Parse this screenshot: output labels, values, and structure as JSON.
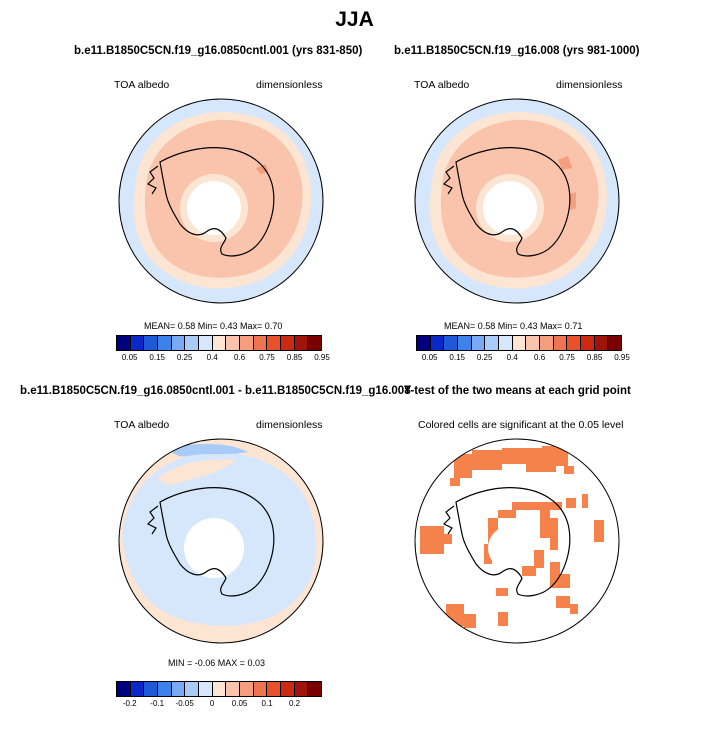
{
  "figure": {
    "title": "JJA"
  },
  "panels": [
    {
      "title": "b.e11.B1850C5CN.f19_g16.0850cntl.001 (yrs 831-850)",
      "var_label": "TOA albedo",
      "units_label": "dimensionless",
      "stats": "MEAN=  0.58  Min=  0.43  Max=  0.70",
      "colorbar": {
        "colors": [
          "#00007f",
          "#0a27c8",
          "#1e5ad8",
          "#3c82ea",
          "#7aaaf5",
          "#a9cbf8",
          "#d6e7fb",
          "#fde5d4",
          "#f9c4ab",
          "#f49e7d",
          "#ef7550",
          "#e8512a",
          "#cc2a10",
          "#a11208",
          "#7a0000"
        ],
        "tick_labels": [
          "0.05",
          "0.15",
          "0.25",
          "0.4",
          "0.6",
          "0.75",
          "0.85",
          "0.95"
        ]
      }
    },
    {
      "title": "b.e11.B1850C5CN.f19_g16.008 (yrs 981-1000)",
      "var_label": "TOA albedo",
      "units_label": "dimensionless",
      "stats": "MEAN=  0.58  Min=  0.43  Max=  0.71",
      "colorbar": {
        "colors": [
          "#00007f",
          "#0a27c8",
          "#1e5ad8",
          "#3c82ea",
          "#7aaaf5",
          "#a9cbf8",
          "#d6e7fb",
          "#fde5d4",
          "#f9c4ab",
          "#f49e7d",
          "#ef7550",
          "#e8512a",
          "#cc2a10",
          "#a11208",
          "#7a0000"
        ],
        "tick_labels": [
          "0.05",
          "0.15",
          "0.25",
          "0.4",
          "0.6",
          "0.75",
          "0.85",
          "0.95"
        ]
      }
    },
    {
      "title": "b.e11.B1850C5CN.f19_g16.0850cntl.001 - b.e11.B1850C5CN.f19_g16.008",
      "var_label": "TOA albedo",
      "units_label": "dimensionless",
      "stats": "MIN =  -0.06 MAX =  0.03",
      "colorbar": {
        "colors": [
          "#00007f",
          "#0a27c8",
          "#1e5ad8",
          "#3c82ea",
          "#7aaaf5",
          "#a9cbf8",
          "#d6e7fb",
          "#fde5d4",
          "#f9c4ab",
          "#f49e7d",
          "#ef7550",
          "#e8512a",
          "#cc2a10",
          "#a11208",
          "#7a0000"
        ],
        "tick_labels": [
          "-0.2",
          "-0.1",
          "-0.05",
          "0",
          "0.05",
          "0.1",
          "0.2"
        ]
      }
    },
    {
      "title": "T-test of the two means at each grid point",
      "subtitle": "Colored cells are significant at the 0.05 level",
      "significant_color": "#f4824a"
    }
  ],
  "chart_data": [
    {
      "type": "heatmap",
      "title": "b.e11.B1850C5CN.f19_g16.0850cntl.001 (yrs 831-850)",
      "variable": "TOA albedo",
      "units": "dimensionless",
      "projection": "south polar stereographic",
      "mean": 0.58,
      "min": 0.43,
      "max": 0.7,
      "levels": [
        0.05,
        0.1,
        0.15,
        0.2,
        0.25,
        0.3,
        0.4,
        0.5,
        0.6,
        0.7,
        0.75,
        0.8,
        0.85,
        0.9,
        0.95
      ],
      "dominant_values": {
        "outer_ocean": 0.45,
        "sea_ice_ring": 0.55,
        "antarctica": 0.65,
        "south_pole_night": "missing"
      }
    },
    {
      "type": "heatmap",
      "title": "b.e11.B1850C5CN.f19_g16.008 (yrs 981-1000)",
      "variable": "TOA albedo",
      "units": "dimensionless",
      "projection": "south polar stereographic",
      "mean": 0.58,
      "min": 0.43,
      "max": 0.71,
      "levels": [
        0.05,
        0.1,
        0.15,
        0.2,
        0.25,
        0.3,
        0.4,
        0.5,
        0.6,
        0.7,
        0.75,
        0.8,
        0.85,
        0.9,
        0.95
      ],
      "dominant_values": {
        "outer_ocean": 0.45,
        "sea_ice_ring": 0.55,
        "antarctica": 0.65,
        "south_pole_night": "missing"
      }
    },
    {
      "type": "heatmap",
      "title": "b.e11.B1850C5CN.f19_g16.0850cntl.001 - b.e11.B1850C5CN.f19_g16.008",
      "variable": "TOA albedo",
      "units": "dimensionless",
      "projection": "south polar stereographic",
      "min": -0.06,
      "max": 0.03,
      "levels": [
        -0.2,
        -0.15,
        -0.1,
        -0.075,
        -0.05,
        -0.025,
        -0.01,
        0,
        0.01,
        0.025,
        0.05,
        0.075,
        0.1,
        0.15,
        0.2
      ],
      "dominant_values": {
        "antarctica_and_sea_ice": -0.01,
        "outer_ocean": 0.005,
        "pacific_sector_band": -0.02
      }
    },
    {
      "type": "heatmap",
      "title": "T-test of the two means at each grid point",
      "subtitle": "Colored cells are significant at the 0.05 level",
      "projection": "south polar stereographic",
      "significance_level": 0.05
    }
  ]
}
